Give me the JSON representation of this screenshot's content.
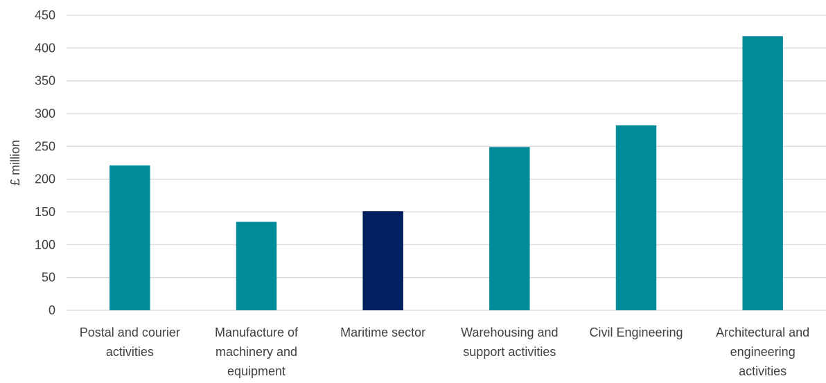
{
  "chart_data": {
    "type": "bar",
    "title": "",
    "xlabel": "",
    "ylabel": "£ million",
    "ylim": [
      0,
      450
    ],
    "yticks": [
      0,
      50,
      100,
      150,
      200,
      250,
      300,
      350,
      400,
      450
    ],
    "grid": true,
    "legend": "none",
    "categories": [
      [
        "Postal and courier",
        "activities"
      ],
      [
        "Manufacture of",
        "machinery and",
        "equipment"
      ],
      [
        "Maritime sector"
      ],
      [
        "Warehousing and",
        "support activities"
      ],
      [
        "Civil Engineering"
      ],
      [
        "Architectural and",
        "engineering",
        "activities"
      ]
    ],
    "values": [
      221,
      135,
      151,
      249,
      282,
      418
    ],
    "bar_colors": [
      "#008B9A",
      "#008B9A",
      "#002060",
      "#008B9A",
      "#008B9A",
      "#008B9A"
    ],
    "gridline_color": "#D9D9D9",
    "text_color": "#404040"
  }
}
